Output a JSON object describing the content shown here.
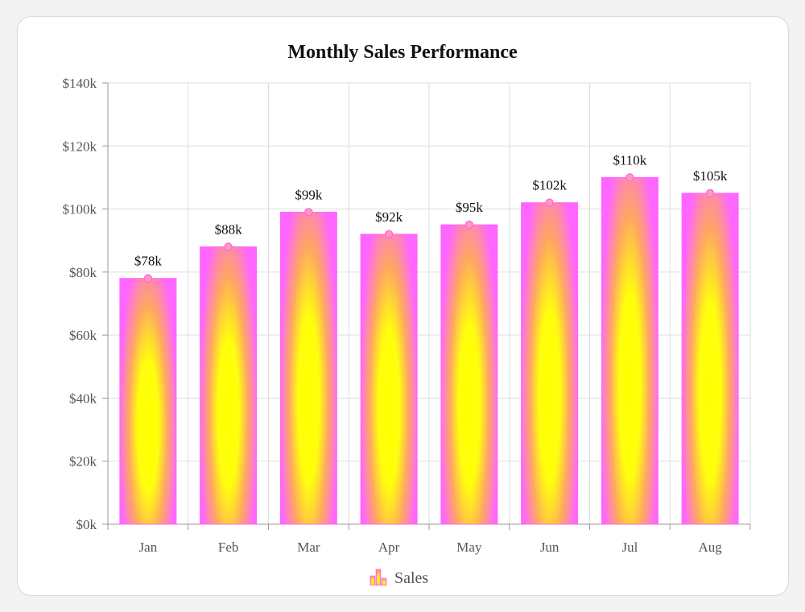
{
  "colors": {
    "bar_center": "#ffff00",
    "bar_mid": "#ffa860",
    "bar_edge": "#ff66ff",
    "marker_fill": "#ffa0a0",
    "marker_stroke": "#ff66ff",
    "grid": "#dddddd",
    "axis": "#999999"
  },
  "chart_data": {
    "type": "bar",
    "title": "Monthly Sales Performance",
    "categories": [
      "Jan",
      "Feb",
      "Mar",
      "Apr",
      "May",
      "Jun",
      "Jul",
      "Aug"
    ],
    "series": [
      {
        "name": "Sales",
        "values": [
          78,
          88,
          99,
          92,
          95,
          102,
          110,
          105
        ],
        "data_labels": [
          "$78k",
          "$88k",
          "$99k",
          "$92k",
          "$95k",
          "$102k",
          "$110k",
          "$105k"
        ]
      }
    ],
    "ylim": [
      0,
      140
    ],
    "yticks": [
      0,
      20,
      40,
      60,
      80,
      100,
      120,
      140
    ],
    "ytick_labels": [
      "$0k",
      "$20k",
      "$40k",
      "$60k",
      "$80k",
      "$100k",
      "$120k",
      "$140k"
    ],
    "grid": true,
    "legend": "bottom-center"
  }
}
